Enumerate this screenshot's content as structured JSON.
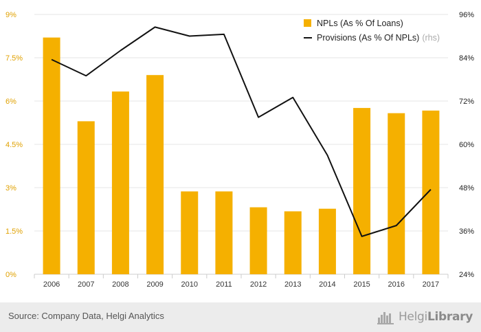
{
  "chart_data": {
    "type": "bar+line",
    "categories": [
      "2006",
      "2007",
      "2008",
      "2009",
      "2010",
      "2011",
      "2012",
      "2013",
      "2014",
      "2015",
      "2016",
      "2017"
    ],
    "series": [
      {
        "name": "NPLs (As % Of Loans)",
        "type": "bar",
        "axis": "left",
        "color": "#F5B000",
        "values": [
          8.2,
          5.3,
          6.33,
          6.9,
          2.87,
          2.87,
          2.32,
          2.18,
          2.27,
          5.76,
          5.58,
          5.67
        ]
      },
      {
        "name": "Provisions (As % Of NPLs)",
        "suffix": "(rhs)",
        "type": "line",
        "axis": "right",
        "color": "#111111",
        "values": [
          83.5,
          79.0,
          86.0,
          92.5,
          90.0,
          90.5,
          67.5,
          73.0,
          57.0,
          34.5,
          37.5,
          47.5
        ]
      }
    ],
    "y_left": {
      "min": 0,
      "max": 9,
      "ticks": [
        "0%",
        "1.5%",
        "3%",
        "4.5%",
        "6%",
        "7.5%",
        "9%"
      ],
      "tick_values": [
        0,
        1.5,
        3,
        4.5,
        6,
        7.5,
        9
      ]
    },
    "y_right": {
      "min": 24,
      "max": 96,
      "ticks": [
        "24%",
        "36%",
        "48%",
        "60%",
        "72%",
        "84%",
        "96%"
      ],
      "tick_values": [
        24,
        36,
        48,
        60,
        72,
        84,
        96
      ]
    },
    "grid": true,
    "legend_position": "top-right"
  },
  "footer": {
    "source": "Source: Company Data, Helgi Analytics",
    "logo_text_a": "Helgi",
    "logo_text_b": "Library"
  },
  "colors": {
    "bar": "#F5B000",
    "line": "#111111",
    "left_ticks": "#E0A100",
    "grid": "#e6e6e6",
    "footer_bg": "#ececec"
  },
  "icons": [
    "helgi-library-logo-icon"
  ]
}
